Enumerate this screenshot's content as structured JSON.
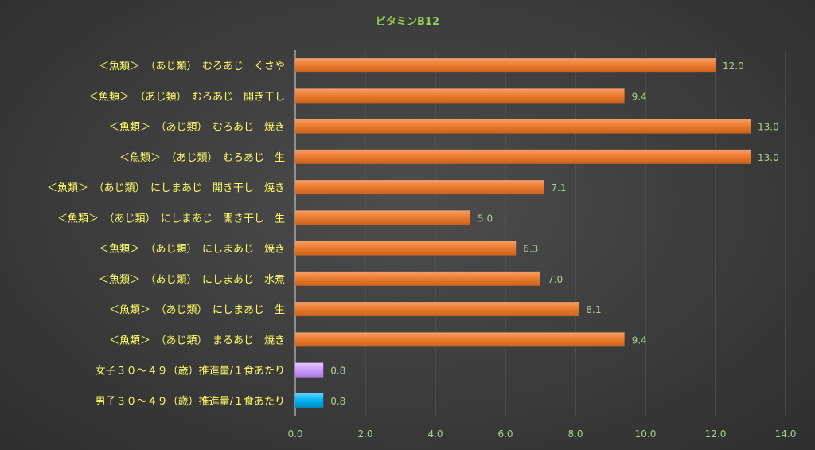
{
  "chart_data": {
    "type": "bar",
    "orientation": "horizontal",
    "title": "ビタミンB12",
    "xlabel": "",
    "ylabel": "",
    "xlim": [
      0,
      14
    ],
    "xticks": [
      "0.0",
      "2.0",
      "4.0",
      "6.0",
      "8.0",
      "10.0",
      "12.0",
      "14.0"
    ],
    "grid": true,
    "legend": "none",
    "categories": [
      "＜魚類＞　（あじ類）　むろあじ　くさや",
      "＜魚類＞　（あじ類）　むろあじ　開き干し",
      "＜魚類＞　（あじ類）　むろあじ　焼き",
      "＜魚類＞　（あじ類）　むろあじ　生",
      "＜魚類＞　（あじ類）　にしまあじ　開き干し　焼き",
      "＜魚類＞　（あじ類）　にしまあじ　開き干し　生",
      "＜魚類＞　（あじ類）　にしまあじ　焼き",
      "＜魚類＞　（あじ類）　にしまあじ　水煮",
      "＜魚類＞　（あじ類）　にしまあじ　生",
      "＜魚類＞　（あじ類）　まるあじ　焼き",
      "女子３０～４９（歳）推進量/１食あたり",
      "男子３０～４９（歳）推進量/１食あたり"
    ],
    "values": [
      12.0,
      9.4,
      13.0,
      13.0,
      7.1,
      5.0,
      6.3,
      7.0,
      8.1,
      9.4,
      0.8,
      0.8
    ],
    "value_labels": [
      "12.0",
      "9.4",
      "13.0",
      "13.0",
      "7.1",
      "5.0",
      "6.3",
      "7.0",
      "8.1",
      "9.4",
      "0.8",
      "0.8"
    ],
    "bar_colors": [
      "#ed7d31",
      "#ed7d31",
      "#ed7d31",
      "#ed7d31",
      "#ed7d31",
      "#ed7d31",
      "#ed7d31",
      "#ed7d31",
      "#ed7d31",
      "#ed7d31",
      "#cc99ff",
      "#00b0f0"
    ]
  }
}
